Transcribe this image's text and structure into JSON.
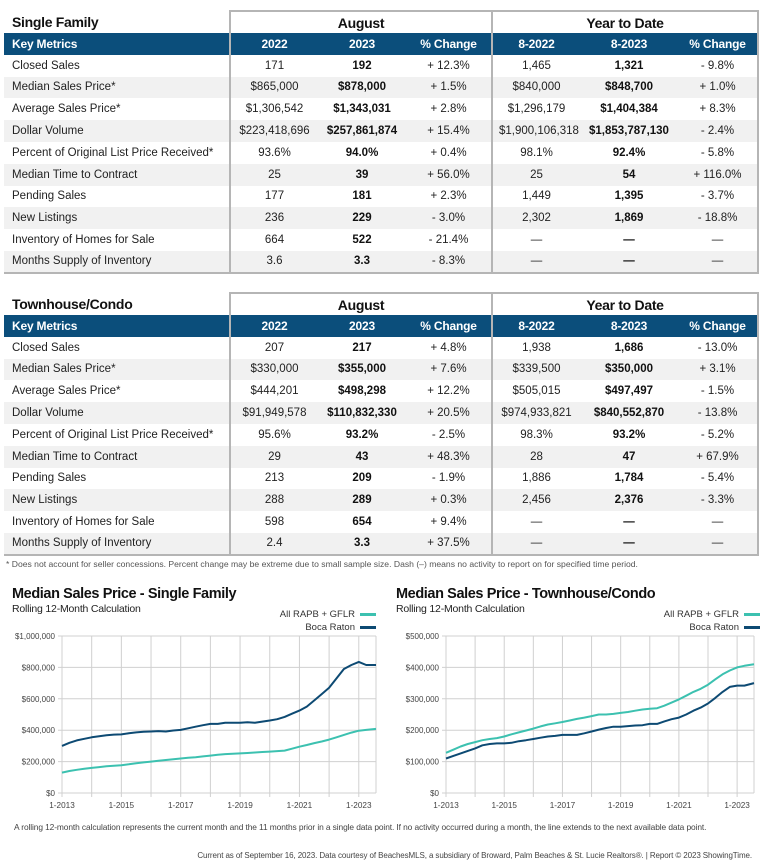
{
  "tables": [
    {
      "group_title": "Single Family",
      "period_title": "August",
      "ytd_title": "Year to Date",
      "headers": [
        "Key Metrics",
        "2022",
        "2023",
        "% Change",
        "8-2022",
        "8-2023",
        "% Change"
      ],
      "rows": [
        {
          "metric": "Closed Sales",
          "m2022": "171",
          "m2023": "192",
          "mchg": "+ 12.3%",
          "y2022": "1,465",
          "y2023": "1,321",
          "ychg": "- 9.8%"
        },
        {
          "metric": "Median Sales Price*",
          "m2022": "$865,000",
          "m2023": "$878,000",
          "mchg": "+ 1.5%",
          "y2022": "$840,000",
          "y2023": "$848,700",
          "ychg": "+ 1.0%"
        },
        {
          "metric": "Average Sales Price*",
          "m2022": "$1,306,542",
          "m2023": "$1,343,031",
          "mchg": "+ 2.8%",
          "y2022": "$1,296,179",
          "y2023": "$1,404,384",
          "ychg": "+ 8.3%"
        },
        {
          "metric": "Dollar Volume",
          "m2022": "$223,418,696",
          "m2023": "$257,861,874",
          "mchg": "+ 15.4%",
          "y2022": "$1,900,106,318",
          "y2023": "$1,853,787,130",
          "ychg": "- 2.4%"
        },
        {
          "metric": "Percent of Original List Price Received*",
          "m2022": "93.6%",
          "m2023": "94.0%",
          "mchg": "+ 0.4%",
          "y2022": "98.1%",
          "y2023": "92.4%",
          "ychg": "- 5.8%"
        },
        {
          "metric": "Median Time to Contract",
          "m2022": "25",
          "m2023": "39",
          "mchg": "+ 56.0%",
          "y2022": "25",
          "y2023": "54",
          "ychg": "+ 116.0%"
        },
        {
          "metric": "Pending Sales",
          "m2022": "177",
          "m2023": "181",
          "mchg": "+ 2.3%",
          "y2022": "1,449",
          "y2023": "1,395",
          "ychg": "- 3.7%"
        },
        {
          "metric": "New Listings",
          "m2022": "236",
          "m2023": "229",
          "mchg": "- 3.0%",
          "y2022": "2,302",
          "y2023": "1,869",
          "ychg": "- 18.8%"
        },
        {
          "metric": "Inventory of Homes for Sale",
          "m2022": "664",
          "m2023": "522",
          "mchg": "- 21.4%",
          "y2022": "—",
          "y2023": "—",
          "ychg": "—"
        },
        {
          "metric": "Months Supply of Inventory",
          "m2022": "3.6",
          "m2023": "3.3",
          "mchg": "- 8.3%",
          "y2022": "—",
          "y2023": "—",
          "ychg": "—"
        }
      ]
    },
    {
      "group_title": "Townhouse/Condo",
      "period_title": "August",
      "ytd_title": "Year to Date",
      "headers": [
        "Key Metrics",
        "2022",
        "2023",
        "% Change",
        "8-2022",
        "8-2023",
        "% Change"
      ],
      "rows": [
        {
          "metric": "Closed Sales",
          "m2022": "207",
          "m2023": "217",
          "mchg": "+ 4.8%",
          "y2022": "1,938",
          "y2023": "1,686",
          "ychg": "- 13.0%"
        },
        {
          "metric": "Median Sales Price*",
          "m2022": "$330,000",
          "m2023": "$355,000",
          "mchg": "+ 7.6%",
          "y2022": "$339,500",
          "y2023": "$350,000",
          "ychg": "+ 3.1%"
        },
        {
          "metric": "Average Sales Price*",
          "m2022": "$444,201",
          "m2023": "$498,298",
          "mchg": "+ 12.2%",
          "y2022": "$505,015",
          "y2023": "$497,497",
          "ychg": "- 1.5%"
        },
        {
          "metric": "Dollar Volume",
          "m2022": "$91,949,578",
          "m2023": "$110,832,330",
          "mchg": "+ 20.5%",
          "y2022": "$974,933,821",
          "y2023": "$840,552,870",
          "ychg": "- 13.8%"
        },
        {
          "metric": "Percent of Original List Price Received*",
          "m2022": "95.6%",
          "m2023": "93.2%",
          "mchg": "- 2.5%",
          "y2022": "98.3%",
          "y2023": "93.2%",
          "ychg": "- 5.2%"
        },
        {
          "metric": "Median Time to Contract",
          "m2022": "29",
          "m2023": "43",
          "mchg": "+ 48.3%",
          "y2022": "28",
          "y2023": "47",
          "ychg": "+ 67.9%"
        },
        {
          "metric": "Pending Sales",
          "m2022": "213",
          "m2023": "209",
          "mchg": "- 1.9%",
          "y2022": "1,886",
          "y2023": "1,784",
          "ychg": "- 5.4%"
        },
        {
          "metric": "New Listings",
          "m2022": "288",
          "m2023": "289",
          "mchg": "+ 0.3%",
          "y2022": "2,456",
          "y2023": "2,376",
          "ychg": "- 3.3%"
        },
        {
          "metric": "Inventory of Homes for Sale",
          "m2022": "598",
          "m2023": "654",
          "mchg": "+ 9.4%",
          "y2022": "—",
          "y2023": "—",
          "ychg": "—"
        },
        {
          "metric": "Months Supply of Inventory",
          "m2022": "2.4",
          "m2023": "3.3",
          "mchg": "+ 37.5%",
          "y2022": "—",
          "y2023": "—",
          "ychg": "—"
        }
      ]
    }
  ],
  "footnote": "* Does not account for seller concessions. Percent change may be extreme due to small sample size. Dash (–) means no activity to report on for specified time period.",
  "colors": {
    "header_bg": "#0b4e7b",
    "series_all": "#3cc1b0",
    "series_boca": "#0d4a73",
    "grid": "#d0d0d0"
  },
  "chart_data": [
    {
      "type": "line",
      "title": "Median Sales Price - Single Family",
      "subtitle": "Rolling 12-Month Calculation",
      "xlabel": "",
      "ylabel": "",
      "ylim": [
        0,
        1000000
      ],
      "yticks": [
        0,
        200000,
        400000,
        600000,
        800000,
        1000000
      ],
      "ytick_labels": [
        "$0",
        "$200,000",
        "$400,000",
        "$600,000",
        "$800,000",
        "$1,000,000"
      ],
      "xlim": [
        2013.0,
        2023.58
      ],
      "xtick_labels": [
        "1-2013",
        "1-2015",
        "1-2017",
        "1-2019",
        "1-2021",
        "1-2023"
      ],
      "xticks": [
        2013,
        2015,
        2017,
        2019,
        2021,
        2023
      ],
      "grid_x": [
        2013,
        2014,
        2015,
        2016,
        2017,
        2018,
        2019,
        2020,
        2021,
        2022,
        2023
      ],
      "grid": true,
      "legend_position": "top-right",
      "x": [
        2013.0,
        2013.25,
        2013.5,
        2013.75,
        2014.0,
        2014.25,
        2014.5,
        2014.75,
        2015.0,
        2015.25,
        2015.5,
        2015.75,
        2016.0,
        2016.25,
        2016.5,
        2016.75,
        2017.0,
        2017.25,
        2017.5,
        2017.75,
        2018.0,
        2018.25,
        2018.5,
        2018.75,
        2019.0,
        2019.25,
        2019.5,
        2019.75,
        2020.0,
        2020.25,
        2020.5,
        2020.75,
        2021.0,
        2021.25,
        2021.5,
        2021.75,
        2022.0,
        2022.25,
        2022.5,
        2022.75,
        2023.0,
        2023.25,
        2023.58
      ],
      "series": [
        {
          "name": "All RAPB + GFLR",
          "values": [
            130000,
            140000,
            148000,
            155000,
            160000,
            165000,
            170000,
            173000,
            177000,
            183000,
            190000,
            195000,
            200000,
            205000,
            210000,
            215000,
            220000,
            224000,
            228000,
            233000,
            238000,
            243000,
            248000,
            250000,
            252000,
            255000,
            258000,
            261000,
            264000,
            267000,
            270000,
            282000,
            295000,
            306000,
            318000,
            328000,
            340000,
            355000,
            370000,
            385000,
            397000,
            402000,
            408000
          ]
        },
        {
          "name": "Boca Raton",
          "values": [
            300000,
            320000,
            335000,
            345000,
            355000,
            362000,
            368000,
            372000,
            373000,
            380000,
            386000,
            390000,
            392000,
            394000,
            392000,
            398000,
            402000,
            412000,
            422000,
            432000,
            440000,
            440000,
            447000,
            447000,
            447000,
            450000,
            448000,
            455000,
            462000,
            470000,
            485000,
            505000,
            525000,
            550000,
            590000,
            630000,
            670000,
            730000,
            790000,
            815000,
            835000,
            815000,
            815000
          ]
        }
      ]
    },
    {
      "type": "line",
      "title": "Median Sales Price - Townhouse/Condo",
      "subtitle": "Rolling 12-Month Calculation",
      "xlabel": "",
      "ylabel": "",
      "ylim": [
        0,
        500000
      ],
      "yticks": [
        0,
        100000,
        200000,
        300000,
        400000,
        500000
      ],
      "ytick_labels": [
        "$0",
        "$100,000",
        "$200,000",
        "$300,000",
        "$400,000",
        "$500,000"
      ],
      "xlim": [
        2013.0,
        2023.58
      ],
      "xtick_labels": [
        "1-2013",
        "1-2015",
        "1-2017",
        "1-2019",
        "1-2021",
        "1-2023"
      ],
      "xticks": [
        2013,
        2015,
        2017,
        2019,
        2021,
        2023
      ],
      "grid_x": [
        2013,
        2014,
        2015,
        2016,
        2017,
        2018,
        2019,
        2020,
        2021,
        2022,
        2023
      ],
      "grid": true,
      "legend_position": "top-right",
      "x": [
        2013.0,
        2013.25,
        2013.5,
        2013.75,
        2014.0,
        2014.25,
        2014.5,
        2014.75,
        2015.0,
        2015.25,
        2015.5,
        2015.75,
        2016.0,
        2016.25,
        2016.5,
        2016.75,
        2017.0,
        2017.25,
        2017.5,
        2017.75,
        2018.0,
        2018.25,
        2018.5,
        2018.75,
        2019.0,
        2019.25,
        2019.5,
        2019.75,
        2020.0,
        2020.25,
        2020.5,
        2020.75,
        2021.0,
        2021.25,
        2021.5,
        2021.75,
        2022.0,
        2022.25,
        2022.5,
        2022.75,
        2023.0,
        2023.25,
        2023.58
      ],
      "series": [
        {
          "name": "All RAPB + GFLR",
          "values": [
            128000,
            138000,
            148000,
            156000,
            162000,
            168000,
            172000,
            175000,
            180000,
            187000,
            193000,
            199000,
            205000,
            212000,
            218000,
            222000,
            226000,
            231000,
            236000,
            240000,
            245000,
            250000,
            250000,
            252000,
            255000,
            258000,
            262000,
            266000,
            268000,
            270000,
            278000,
            288000,
            298000,
            310000,
            322000,
            332000,
            345000,
            362000,
            378000,
            390000,
            400000,
            405000,
            410000
          ]
        },
        {
          "name": "Boca Raton",
          "values": [
            110000,
            118000,
            126000,
            134000,
            142000,
            152000,
            156000,
            158000,
            158000,
            160000,
            165000,
            168000,
            172000,
            176000,
            180000,
            182000,
            185000,
            185000,
            185000,
            190000,
            196000,
            202000,
            207000,
            211000,
            211000,
            213000,
            215000,
            216000,
            220000,
            220000,
            228000,
            235000,
            240000,
            250000,
            262000,
            272000,
            285000,
            303000,
            322000,
            338000,
            342000,
            342000,
            350000
          ]
        }
      ]
    }
  ],
  "bottom_note": "A rolling 12-month calculation represents the current month and the 11 months prior in a single data point. If no activity occurred during a month, the line extends to the next available data point.",
  "credits": "Current as of September 16, 2023. Data courtesy of BeachesMLS, a subsidiary of Broward, Palm Beaches & St. Lucie Realtors®. | Report © 2023 ShowingTime."
}
